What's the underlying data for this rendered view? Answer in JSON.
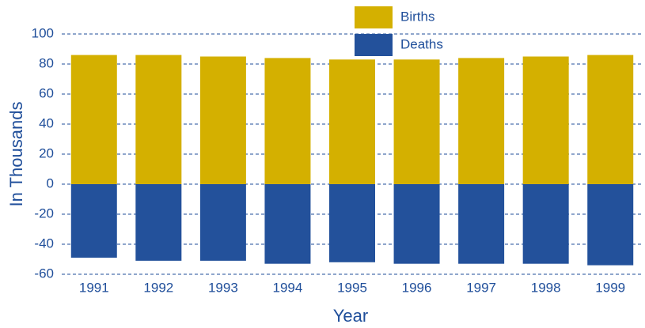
{
  "chart_data": {
    "type": "bar",
    "categories": [
      "1991",
      "1992",
      "1993",
      "1994",
      "1995",
      "1996",
      "1997",
      "1998",
      "1999"
    ],
    "series": [
      {
        "name": "Births",
        "color": "#d4b000",
        "values": [
          86,
          86,
          85,
          84,
          83,
          83,
          84,
          85,
          86
        ]
      },
      {
        "name": "Deaths",
        "color": "#23519b",
        "values": [
          -49,
          -51,
          -51,
          -53,
          -52,
          -53,
          -53,
          -53,
          -54
        ]
      }
    ],
    "xlabel": "Year",
    "ylabel": "In Thousands",
    "ylim": [
      -60,
      100
    ],
    "yticks": [
      -60,
      -40,
      -20,
      0,
      20,
      40,
      60,
      80,
      100
    ],
    "grid": true
  }
}
